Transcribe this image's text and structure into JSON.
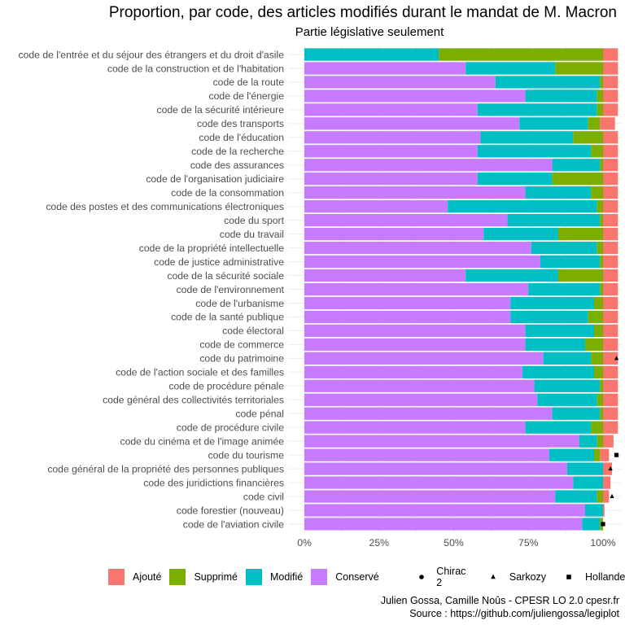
{
  "chart_data": {
    "type": "bar",
    "orientation": "horizontal",
    "stacked": true,
    "title": "Proportion, par code, des articles modifiés durant le mandat de M. Macron",
    "subtitle": "Partie législative seulement",
    "xlim": [
      0,
      1.05
    ],
    "xticks": [
      0,
      0.25,
      0.5,
      0.75,
      1.0
    ],
    "xtick_labels": [
      "0%",
      "25%",
      "50%",
      "75%",
      "100%"
    ],
    "grid": true,
    "legend_position": "bottom",
    "categories": [
      "code de l'entrée et du séjour des étrangers et du droit d'asile",
      "code de la construction et de l'habitation",
      "code de la route",
      "code de l'énergie",
      "code de la sécurité intérieure",
      "code des transports",
      "code de l'éducation",
      "code de la recherche",
      "code des assurances",
      "code de l'organisation judiciaire",
      "code de la consommation",
      "code des postes et des communications électroniques",
      "code du sport",
      "code du travail",
      "code de la propriété intellectuelle",
      "code de justice administrative",
      "code de la sécurité sociale",
      "code de l'environnement",
      "code de l'urbanisme",
      "code de la santé publique",
      "code électoral",
      "code de commerce",
      "code du patrimoine",
      "code de l'action sociale et des familles",
      "code de procédure pénale",
      "code général des collectivités territoriales",
      "code pénal",
      "code de procédure civile",
      "code du cinéma et de l'image animée",
      "code du tourisme",
      "code général de la propriété des personnes publiques",
      "code des juridictions financières",
      "code civil",
      "code forestier (nouveau)",
      "code de l'aviation civile"
    ],
    "series": [
      {
        "name": "Conservé",
        "color": "#C77CFF",
        "values": [
          0,
          0.54,
          0.64,
          0.74,
          0.58,
          0.72,
          0.59,
          0.58,
          0.83,
          0.58,
          0.74,
          0.48,
          0.68,
          0.6,
          0.76,
          0.79,
          0.54,
          0.75,
          0.69,
          0.69,
          0.74,
          0.74,
          0.8,
          0.73,
          0.77,
          0.78,
          0.83,
          0.74,
          0.92,
          0.82,
          0.88,
          0.9,
          0.84,
          0.94,
          0.93
        ]
      },
      {
        "name": "Modifié",
        "color": "#00BFC4",
        "values": [
          0.45,
          0.3,
          0.35,
          0.24,
          0.4,
          0.23,
          0.31,
          0.38,
          0.16,
          0.25,
          0.22,
          0.5,
          0.31,
          0.25,
          0.22,
          0.2,
          0.31,
          0.24,
          0.28,
          0.26,
          0.23,
          0.2,
          0.16,
          0.24,
          0.22,
          0.2,
          0.16,
          0.22,
          0.06,
          0.15,
          0.12,
          0.1,
          0.14,
          0.06,
          0.06
        ]
      },
      {
        "name": "Supprimé",
        "color": "#7CAE00",
        "values": [
          0.55,
          0.16,
          0.01,
          0.02,
          0.02,
          0.04,
          0.1,
          0.04,
          0.01,
          0.17,
          0.04,
          0.02,
          0.01,
          0.15,
          0.02,
          0.01,
          0.15,
          0.01,
          0.03,
          0.05,
          0.03,
          0.06,
          0.04,
          0.03,
          0.01,
          0.02,
          0.01,
          0.04,
          0.02,
          0.02,
          0.0,
          0.0,
          0.02,
          0.0,
          0.01
        ]
      },
      {
        "name": "Ajouté",
        "color": "#F8766D",
        "values": [
          0.05,
          0.05,
          0.05,
          0.05,
          0.05,
          0.05,
          0.05,
          0.05,
          0.05,
          0.05,
          0.05,
          0.05,
          0.05,
          0.05,
          0.05,
          0.05,
          0.05,
          0.05,
          0.05,
          0.05,
          0.05,
          0.05,
          0.05,
          0.05,
          0.05,
          0.05,
          0.05,
          0.05,
          0.035,
          0.03,
          0.03,
          0.025,
          0.02,
          0.005,
          0.0
        ]
      }
    ],
    "legend_order": [
      "Ajouté",
      "Supprimé",
      "Modifié",
      "Conservé"
    ],
    "markers": [
      {
        "name": "Chirac 2",
        "shape": "circle"
      },
      {
        "name": "Sarkozy",
        "shape": "triangle"
      },
      {
        "name": "Hollande",
        "shape": "square"
      }
    ],
    "marker_points": [
      {
        "category": "code du patrimoine",
        "shape": "triangle",
        "value": 1.045
      },
      {
        "category": "code du tourisme",
        "shape": "square",
        "value": 1.045
      },
      {
        "category": "code général de la propriété des personnes publiques",
        "shape": "triangle",
        "value": 1.025
      },
      {
        "category": "code civil",
        "shape": "triangle",
        "value": 1.03
      },
      {
        "category": "code de l'aviation civile",
        "shape": "square",
        "value": 1.0
      },
      {
        "category": "code de l'aviation civile",
        "shape": "circle",
        "value": 1.0
      }
    ]
  },
  "caption": {
    "line1": "Julien Gossa, Camille Noûs - CPESR LO 2.0 cpesr.fr",
    "line2": "Source : https://github.com/juliengossa/legiplot"
  }
}
